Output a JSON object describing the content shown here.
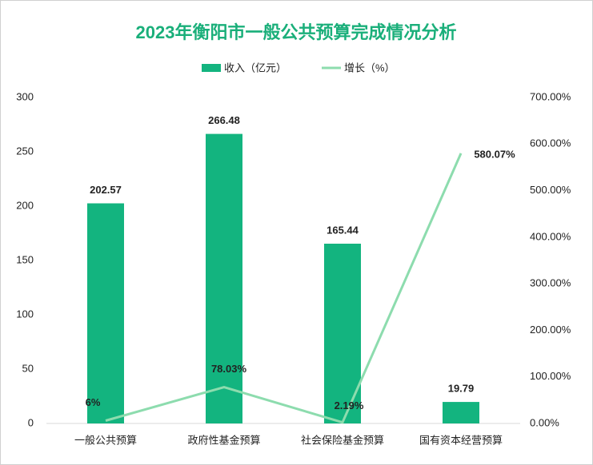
{
  "chart_data": {
    "type": "bar",
    "title": "2023年衡阳市一般公共预算完成情况分析",
    "title_color": "#1aaf7a",
    "categories": [
      "一般公共预算",
      "政府性基金预算",
      "社会保险基金预算",
      "国有资本经营预算"
    ],
    "series": [
      {
        "name": "收入（亿元）",
        "type": "bar",
        "color": "#13b47f",
        "values": [
          202.57,
          266.48,
          165.44,
          19.79
        ]
      },
      {
        "name": "增长（%）",
        "type": "line",
        "axis": "y2",
        "color": "#8ddcae",
        "values": [
          6,
          78.03,
          2.19,
          580.07
        ],
        "value_labels": [
          "6%",
          "78.03%",
          "2.19%",
          "580.07%"
        ]
      }
    ],
    "ylim": [
      0,
      300
    ],
    "yticks": [
      0,
      50,
      100,
      150,
      200,
      250,
      300
    ],
    "y2lim": [
      0,
      700
    ],
    "y2ticks": [
      {
        "value": 0,
        "label": "0.00%"
      },
      {
        "value": 100,
        "label": "100.00%"
      },
      {
        "value": 200,
        "label": "200.00%"
      },
      {
        "value": 300,
        "label": "300.00%"
      },
      {
        "value": 400,
        "label": "400.00%"
      },
      {
        "value": 500,
        "label": "500.00%"
      },
      {
        "value": 600,
        "label": "600.00%"
      },
      {
        "value": 700,
        "label": "700.00%"
      }
    ],
    "legend": "top"
  }
}
